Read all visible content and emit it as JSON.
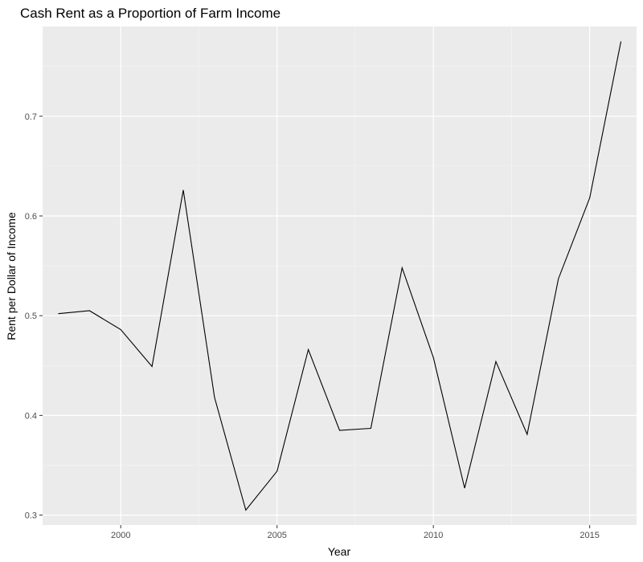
{
  "chart_data": {
    "type": "line",
    "title": "Cash Rent as a Proportion of Farm Income",
    "xlabel": "Year",
    "ylabel": "Rent per Dollar of Income",
    "xlim": [
      1997.5,
      2016.5
    ],
    "ylim": [
      0.29,
      0.79
    ],
    "x_ticks": [
      2000,
      2005,
      2010,
      2015
    ],
    "x_minor_ticks": [
      1997.5,
      2002.5,
      2007.5,
      2012.5
    ],
    "y_ticks": [
      0.3,
      0.4,
      0.5,
      0.6,
      0.7
    ],
    "y_minor_ticks": [
      0.35,
      0.45,
      0.55,
      0.65,
      0.75
    ],
    "x_tick_labels": [
      "2000",
      "2005",
      "2010",
      "2015"
    ],
    "y_tick_labels": [
      "0.3",
      "0.4",
      "0.5",
      "0.6",
      "0.7"
    ],
    "grid": true,
    "series": [
      {
        "x": [
          1998,
          1999,
          2000,
          2001,
          2002,
          2003,
          2004,
          2005,
          2006,
          2007,
          2008,
          2009,
          2010,
          2011,
          2012,
          2013,
          2014,
          2015,
          2016
        ],
        "y": [
          0.502,
          0.505,
          0.486,
          0.449,
          0.626,
          0.418,
          0.305,
          0.344,
          0.466,
          0.385,
          0.387,
          0.548,
          0.458,
          0.327,
          0.454,
          0.381,
          0.537,
          0.618,
          0.775
        ],
        "color": "#000000"
      }
    ],
    "colors": {
      "panel": "#ebebeb",
      "grid_major": "#ffffff",
      "grid_minor": "#f5f5f5",
      "line": "#000000",
      "tick_text": "#4d4d4d",
      "tick_mark": "#333333"
    }
  }
}
